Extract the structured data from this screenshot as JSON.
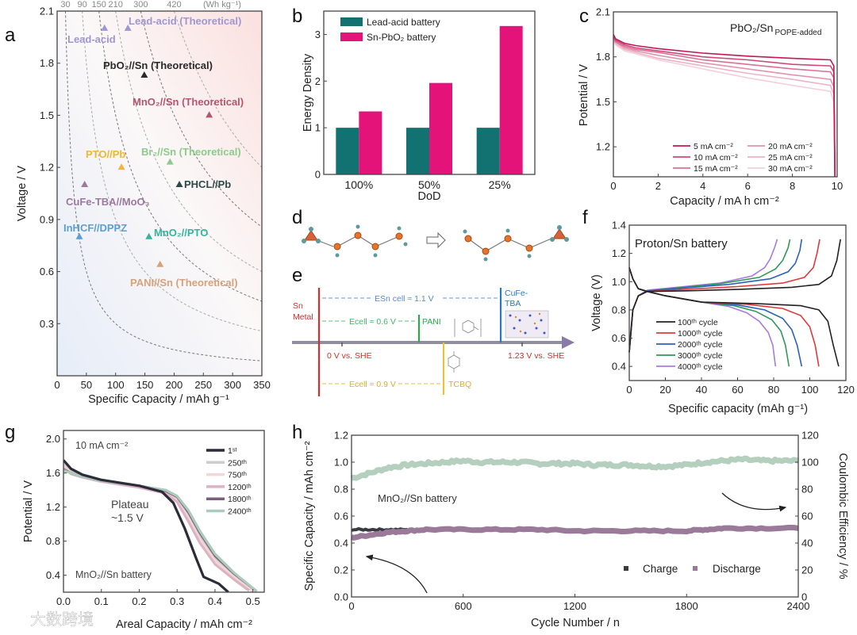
{
  "figure_labels": {
    "a": "a",
    "b": "b",
    "c": "c",
    "d": "d",
    "e": "e",
    "f": "f",
    "g": "g",
    "h": "h"
  },
  "watermark": "大数跨境",
  "chart_data": [
    {
      "panel": "a",
      "type": "scatter",
      "xlabel": "Specific Capacity / mAh g⁻¹",
      "ylabel": "Voltage / V",
      "xlim": [
        0,
        350
      ],
      "ylim": [
        0,
        2.1
      ],
      "xticks": [
        "0",
        "50",
        "100",
        "150",
        "200",
        "250",
        "300",
        "350"
      ],
      "yticks": [
        "0.3",
        "0.6",
        "0.9",
        "1.2",
        "1.5",
        "1.8",
        "2.1"
      ],
      "energy_contours": {
        "values": [
          30,
          90,
          150,
          210,
          300,
          420
        ],
        "labels": [
          "30",
          "90",
          "150",
          "210",
          "300",
          "420"
        ],
        "unit": "(Wh kg⁻¹)"
      },
      "points": [
        {
          "label": "Lead-acid (Theoretical)",
          "x": 121,
          "y": 2.0,
          "color": "#9f97d0"
        },
        {
          "label": "Lead-acid",
          "x": 81,
          "y": 2.0,
          "color": "#9f97d0"
        },
        {
          "label": "PbO₂//Sn (Theoretical)",
          "x": 149,
          "y": 1.73,
          "color": "#2a2a2a"
        },
        {
          "label": "MnO₂//Sn (Theoretical)",
          "x": 260,
          "y": 1.5,
          "color": "#b4566f"
        },
        {
          "label": "PTO//Pb",
          "x": 110,
          "y": 1.2,
          "color": "#f2b630"
        },
        {
          "label": "Br₂//Sn (Theoretical)",
          "x": 193,
          "y": 1.23,
          "color": "#8ccb8c"
        },
        {
          "label": "PHCL//Pb",
          "x": 209,
          "y": 1.1,
          "color": "#2c4a4a"
        },
        {
          "label": "CuFe-TBA//MoO₃",
          "x": 47,
          "y": 1.1,
          "color": "#9a7a9e"
        },
        {
          "label": "InHCF//DPPZ",
          "x": 38,
          "y": 0.8,
          "color": "#5b9fd0"
        },
        {
          "label": "MnO₂//PTO",
          "x": 157,
          "y": 0.8,
          "color": "#35b59e"
        },
        {
          "label": "PANI//Sn (Theoretical)",
          "x": 176,
          "y": 0.64,
          "color": "#d7a27a"
        }
      ]
    },
    {
      "panel": "b",
      "type": "bar",
      "xlabel": "DoD",
      "ylabel": "Energy Density",
      "ylim": [
        0,
        3.5
      ],
      "yticks": [
        "0",
        "1",
        "2",
        "3"
      ],
      "categories": [
        "100%",
        "50%",
        "25%"
      ],
      "series": [
        {
          "name": "Lead-acid battery",
          "values": [
            1,
            1,
            1
          ],
          "color": "#127272"
        },
        {
          "name": "Sn-PbO₂ battery",
          "values": [
            1.35,
            1.96,
            3.18
          ],
          "color": "#e3137a"
        }
      ],
      "legend": "top-left"
    },
    {
      "panel": "c",
      "type": "line",
      "title": "PbO₂/Sn",
      "title_subscript": "POPE-added",
      "xlabel": "Capacity / mA h cm⁻²",
      "ylabel": "Potential / V",
      "xlim": [
        0,
        10
      ],
      "ylim": [
        1.0,
        2.1
      ],
      "xticks": [
        "0",
        "2",
        "4",
        "6",
        "8",
        "10"
      ],
      "yticks": [
        "1.2",
        "1.5",
        "1.8",
        "2.1"
      ],
      "x": [
        0,
        0.1,
        0.5,
        1,
        2,
        4,
        6,
        8,
        9.7,
        9.85,
        9.9
      ],
      "series": [
        {
          "name": "5 mA cm⁻²",
          "color": "#c2185b",
          "values": [
            1.95,
            1.92,
            1.89,
            1.875,
            1.855,
            1.825,
            1.805,
            1.79,
            1.78,
            1.74,
            1.0
          ]
        },
        {
          "name": "10 mA cm⁻²",
          "color": "#d0477a",
          "values": [
            1.94,
            1.91,
            1.88,
            1.86,
            1.84,
            1.8,
            1.78,
            1.75,
            1.74,
            1.7,
            1.0
          ]
        },
        {
          "name": "15 mA cm⁻²",
          "color": "#d97095",
          "values": [
            1.93,
            1.9,
            1.87,
            1.85,
            1.83,
            1.78,
            1.75,
            1.72,
            1.7,
            1.66,
            1.0
          ]
        },
        {
          "name": "20 mA cm⁻²",
          "color": "#e391ad",
          "values": [
            1.93,
            1.9,
            1.86,
            1.84,
            1.81,
            1.76,
            1.72,
            1.68,
            1.65,
            1.6,
            1.0
          ]
        },
        {
          "name": "25 mA cm⁻²",
          "color": "#ecb3c6",
          "values": [
            1.92,
            1.89,
            1.85,
            1.83,
            1.79,
            1.74,
            1.69,
            1.65,
            1.61,
            1.55,
            1.0
          ]
        },
        {
          "name": "30 mA cm⁻²",
          "color": "#f3cfdb",
          "values": [
            1.91,
            1.88,
            1.84,
            1.82,
            1.78,
            1.72,
            1.66,
            1.61,
            1.57,
            1.5,
            1.0
          ]
        }
      ],
      "legend": "bottom"
    },
    {
      "panel": "f",
      "type": "line",
      "title": "Proton/Sn battery",
      "xlabel": "Specific capacity (mAh g⁻¹)",
      "ylabel": "Voltage (V)",
      "xlim": [
        0,
        120
      ],
      "ylim": [
        0.3,
        1.4
      ],
      "xticks": [
        "0",
        "20",
        "40",
        "60",
        "80",
        "100",
        "120"
      ],
      "yticks": [
        "0.4",
        "0.6",
        "0.8",
        "1.0",
        "1.2",
        "1.4"
      ],
      "series": [
        {
          "name": "100ᵗʰ cycle",
          "color": "#222222",
          "charge": {
            "x": [
              0,
              2,
              5,
              10,
              30,
              60,
              90,
              105,
              112,
              115,
              117
            ],
            "y": [
              0.5,
              0.8,
              0.9,
              0.93,
              0.935,
              0.945,
              0.96,
              0.98,
              1.04,
              1.15,
              1.3
            ]
          },
          "discharge": {
            "x": [
              0,
              2,
              5,
              10,
              20,
              40,
              70,
              95,
              105,
              110,
              113,
              116
            ],
            "y": [
              1.1,
              1.02,
              0.95,
              0.93,
              0.9,
              0.855,
              0.845,
              0.83,
              0.8,
              0.72,
              0.55,
              0.4
            ]
          }
        },
        {
          "name": "1000ᵗʰ cycle",
          "color": "#e0393c",
          "charge": {
            "x": [
              0,
              2,
              5,
              10,
              30,
              60,
              85,
              97,
              102,
              104,
              105.5
            ],
            "y": [
              0.5,
              0.8,
              0.9,
              0.93,
              0.945,
              0.965,
              0.99,
              1.03,
              1.1,
              1.2,
              1.3
            ]
          },
          "discharge": {
            "x": [
              0,
              2,
              5,
              10,
              20,
              40,
              65,
              85,
              95,
              100,
              103,
              105
            ],
            "y": [
              1.1,
              1.02,
              0.95,
              0.93,
              0.9,
              0.855,
              0.84,
              0.81,
              0.76,
              0.68,
              0.55,
              0.4
            ]
          }
        },
        {
          "name": "2000ᵗʰ cycle",
          "color": "#2a62b8",
          "charge": {
            "x": [
              0,
              2,
              5,
              10,
              30,
              55,
              78,
              88,
              92,
              94.5,
              95.5
            ],
            "y": [
              0.5,
              0.8,
              0.9,
              0.935,
              0.955,
              0.98,
              1.02,
              1.07,
              1.13,
              1.22,
              1.3
            ]
          },
          "discharge": {
            "x": [
              0,
              2,
              5,
              10,
              20,
              40,
              60,
              75,
              85,
              90,
              93,
              95.5
            ],
            "y": [
              1.1,
              1.02,
              0.95,
              0.93,
              0.9,
              0.855,
              0.835,
              0.8,
              0.74,
              0.66,
              0.55,
              0.4
            ]
          }
        },
        {
          "name": "3000ᵗʰ cycle",
          "color": "#2e9a5a",
          "charge": {
            "x": [
              0,
              2,
              5,
              10,
              30,
              50,
              72,
              81,
              85,
              88,
              89
            ],
            "y": [
              0.5,
              0.8,
              0.9,
              0.935,
              0.96,
              0.985,
              1.03,
              1.09,
              1.15,
              1.24,
              1.3
            ]
          },
          "discharge": {
            "x": [
              0,
              2,
              5,
              10,
              20,
              40,
              58,
              70,
              79,
              84,
              86.5,
              88.5
            ],
            "y": [
              1.1,
              1.02,
              0.95,
              0.93,
              0.9,
              0.855,
              0.83,
              0.79,
              0.73,
              0.65,
              0.55,
              0.4
            ]
          }
        },
        {
          "name": "4000ᵗʰ cycle",
          "color": "#a57be0",
          "charge": {
            "x": [
              0,
              2,
              5,
              10,
              30,
              50,
              68,
              75,
              78,
              80.5,
              82
            ],
            "y": [
              0.55,
              0.8,
              0.9,
              0.94,
              0.965,
              0.99,
              1.04,
              1.1,
              1.16,
              1.24,
              1.3
            ]
          },
          "discharge": {
            "x": [
              0,
              2,
              5,
              10,
              20,
              40,
              55,
              65,
              72,
              77,
              79.5,
              81
            ],
            "y": [
              1.1,
              1.02,
              0.95,
              0.93,
              0.9,
              0.855,
              0.825,
              0.78,
              0.72,
              0.64,
              0.55,
              0.4
            ]
          }
        }
      ],
      "legend": "bottom-left"
    },
    {
      "panel": "g",
      "type": "line",
      "annotations": [
        "10 mA cm⁻²",
        "Plateau",
        "~1.5 V",
        "MnO₂//Sn battery"
      ],
      "xlabel": "Areal Capacity / mAh cm⁻²",
      "ylabel": "Potential / V",
      "xlim": [
        0,
        0.53
      ],
      "ylim": [
        0.2,
        2.1
      ],
      "xticks": [
        "0.0",
        "0.1",
        "0.2",
        "0.3",
        "0.4",
        "0.5"
      ],
      "yticks": [
        "0.4",
        "0.8",
        "1.2",
        "1.6",
        "2.0"
      ],
      "series": [
        {
          "name": "1ˢᵗ",
          "color": "#2b2b3a",
          "x": [
            0,
            0.02,
            0.05,
            0.1,
            0.2,
            0.26,
            0.29,
            0.32,
            0.35,
            0.37,
            0.41,
            0.435
          ],
          "y": [
            1.75,
            1.65,
            1.58,
            1.52,
            1.45,
            1.38,
            1.25,
            0.95,
            0.6,
            0.38,
            0.3,
            0.2
          ]
        },
        {
          "name": "250ᵗʰ",
          "color": "#c9d0c9",
          "x": [
            0,
            0.02,
            0.05,
            0.1,
            0.2,
            0.27,
            0.3,
            0.33,
            0.36,
            0.4,
            0.45,
            0.5
          ],
          "y": [
            1.7,
            1.62,
            1.57,
            1.52,
            1.45,
            1.38,
            1.3,
            1.1,
            0.85,
            0.6,
            0.4,
            0.22
          ]
        },
        {
          "name": "750ᵗʰ",
          "color": "#f1d7d7",
          "x": [
            0,
            0.02,
            0.05,
            0.1,
            0.2,
            0.27,
            0.3,
            0.33,
            0.36,
            0.4,
            0.45,
            0.5
          ],
          "y": [
            1.68,
            1.6,
            1.56,
            1.51,
            1.44,
            1.37,
            1.28,
            1.07,
            0.82,
            0.57,
            0.38,
            0.21
          ]
        },
        {
          "name": "1200ᵗʰ",
          "color": "#ddb3c3",
          "x": [
            0,
            0.02,
            0.05,
            0.1,
            0.2,
            0.27,
            0.3,
            0.33,
            0.36,
            0.4,
            0.45,
            0.49
          ],
          "y": [
            1.66,
            1.59,
            1.55,
            1.5,
            1.43,
            1.36,
            1.26,
            1.03,
            0.78,
            0.53,
            0.35,
            0.22
          ]
        },
        {
          "name": "1800ᵗʰ",
          "color": "#7d5d7d",
          "x": [
            0,
            0.02,
            0.05,
            0.1,
            0.2,
            0.27,
            0.3,
            0.33,
            0.36,
            0.4,
            0.45,
            0.51
          ],
          "y": [
            1.64,
            1.6,
            1.56,
            1.51,
            1.45,
            1.39,
            1.32,
            1.14,
            0.9,
            0.63,
            0.42,
            0.21
          ]
        },
        {
          "name": "2400ᵗʰ",
          "color": "#abcbbb",
          "x": [
            0,
            0.02,
            0.05,
            0.1,
            0.2,
            0.27,
            0.3,
            0.33,
            0.36,
            0.4,
            0.45,
            0.51
          ],
          "y": [
            1.63,
            1.6,
            1.56,
            1.51,
            1.45,
            1.4,
            1.33,
            1.16,
            0.92,
            0.65,
            0.43,
            0.21
          ]
        }
      ],
      "legend": "top-right"
    },
    {
      "panel": "h",
      "type": "scatter",
      "title": "MnO₂//Sn battery",
      "xlabel": "Cycle Number / n",
      "ylabel": "Specific Capacity / mAh cm⁻²",
      "ylabel_right": "Coulombic Efficiency / %",
      "xlim": [
        0,
        2400
      ],
      "ylim": [
        0,
        1.2
      ],
      "ylim_right": [
        0,
        120
      ],
      "xticks": [
        "0",
        "600",
        "1200",
        "1800",
        "2400"
      ],
      "yticks": [
        "0.0",
        "0.2",
        "0.4",
        "0.6",
        "0.8",
        "1.0",
        "1.2"
      ],
      "yticks_right": [
        "0",
        "20",
        "40",
        "60",
        "80",
        "100",
        "120"
      ],
      "series": [
        {
          "name": "Coulombic Efficiency",
          "axis": "right",
          "color": "#b5cfbe",
          "x": [
            0,
            100,
            200,
            300,
            400,
            500,
            600,
            700,
            800,
            900,
            1000,
            1100,
            1200,
            1300,
            1400,
            1500,
            1600,
            1700,
            1800,
            1900,
            2000,
            2100,
            2200,
            2300,
            2400
          ],
          "y": [
            88,
            92,
            96,
            98,
            99,
            100,
            101,
            100,
            100,
            100,
            99,
            99,
            99,
            98,
            98,
            98,
            97,
            97,
            98,
            100,
            101,
            102,
            101,
            101,
            101
          ]
        },
        {
          "name": "Charge",
          "axis": "left",
          "color": "#3a3a44",
          "x": [
            0,
            100,
            200,
            300
          ],
          "y": [
            0.5,
            0.5,
            0.5,
            0.5
          ]
        },
        {
          "name": "Discharge",
          "axis": "left",
          "color": "#9a7a98",
          "x": [
            0,
            100,
            200,
            300,
            400,
            600,
            800,
            1000,
            1200,
            1400,
            1600,
            1800,
            1900,
            2000,
            2200,
            2400
          ],
          "y": [
            0.44,
            0.46,
            0.48,
            0.49,
            0.5,
            0.5,
            0.5,
            0.5,
            0.49,
            0.49,
            0.49,
            0.49,
            0.5,
            0.51,
            0.51,
            0.51
          ]
        }
      ],
      "legend": "bottom-right"
    }
  ],
  "schematic_e": {
    "sn_metal": [
      "Sn",
      "Metal"
    ],
    "e_sn_cell": "ESn cell ≈ 1.1 V",
    "e_cell_pani": "Ecell ≈ 0.6 V",
    "pani": "PANI",
    "cufe_tba": [
      "CuFe-",
      "TBA"
    ],
    "zero_she": "0 V vs. SHE",
    "she_123": "1.23 V vs. SHE",
    "e_cell_tcbq": "Ecell ≈ 0.9 V",
    "tcbq": "TCBQ",
    "colors": {
      "sn": "#d03030",
      "pani": "#2aa84a",
      "cufe": "#2a78c0",
      "tcbq": "#e8c23a",
      "axis": "#8a8a9a"
    }
  }
}
